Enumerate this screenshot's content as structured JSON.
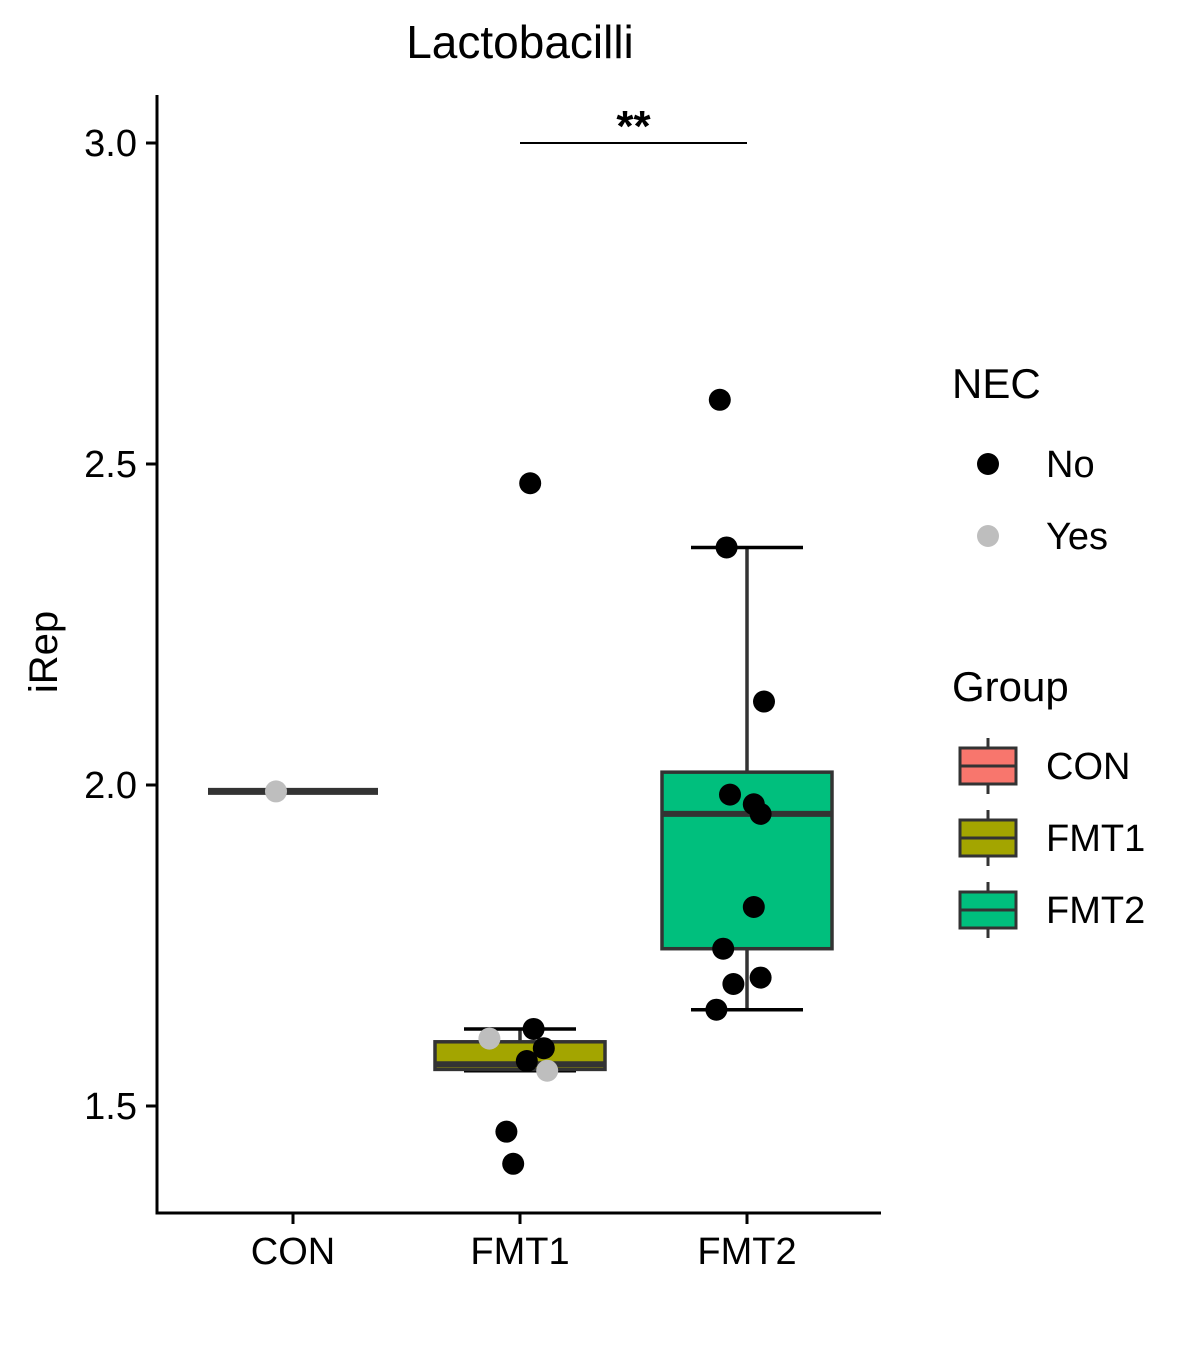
{
  "chart_data": {
    "type": "box",
    "title": "Lactobacilli",
    "xlabel": "",
    "ylabel": "iRep",
    "categories": [
      "CON",
      "FMT1",
      "FMT2"
    ],
    "ylim": [
      1.33,
      3.08
    ],
    "yticks": [
      1.5,
      2.0,
      2.5,
      3.0
    ],
    "ytick_labels": [
      "1.5",
      "2.0",
      "2.5",
      "3.0"
    ],
    "grid": false,
    "boxes": [
      {
        "group": "CON",
        "min": 1.99,
        "q1": 1.99,
        "median": 1.99,
        "q3": 1.99,
        "max": 1.99,
        "color": "#F8766D"
      },
      {
        "group": "FMT1",
        "min": 1.555,
        "q1": 1.557,
        "median": 1.565,
        "q3": 1.6,
        "max": 1.62,
        "color": "#A3A500"
      },
      {
        "group": "FMT2",
        "min": 1.65,
        "q1": 1.745,
        "median": 1.955,
        "q3": 2.02,
        "max": 2.37,
        "color": "#00BF7D"
      }
    ],
    "points": [
      {
        "group": "CON",
        "offset": -0.05,
        "y": 1.99,
        "nec": "Yes"
      },
      {
        "group": "FMT1",
        "offset": 0.03,
        "y": 2.47,
        "nec": "No"
      },
      {
        "group": "FMT1",
        "offset": 0.04,
        "y": 1.62,
        "nec": "No"
      },
      {
        "group": "FMT1",
        "offset": -0.09,
        "y": 1.605,
        "nec": "Yes"
      },
      {
        "group": "FMT1",
        "offset": 0.07,
        "y": 1.59,
        "nec": "No"
      },
      {
        "group": "FMT1",
        "offset": 0.02,
        "y": 1.57,
        "nec": "No"
      },
      {
        "group": "FMT1",
        "offset": 0.08,
        "y": 1.555,
        "nec": "Yes"
      },
      {
        "group": "FMT1",
        "offset": -0.04,
        "y": 1.46,
        "nec": "No"
      },
      {
        "group": "FMT1",
        "offset": -0.02,
        "y": 1.41,
        "nec": "No"
      },
      {
        "group": "FMT2",
        "offset": -0.08,
        "y": 2.6,
        "nec": "No"
      },
      {
        "group": "FMT2",
        "offset": -0.06,
        "y": 2.37,
        "nec": "No"
      },
      {
        "group": "FMT2",
        "offset": 0.05,
        "y": 2.13,
        "nec": "No"
      },
      {
        "group": "FMT2",
        "offset": -0.05,
        "y": 1.985,
        "nec": "No"
      },
      {
        "group": "FMT2",
        "offset": 0.02,
        "y": 1.97,
        "nec": "No"
      },
      {
        "group": "FMT2",
        "offset": 0.04,
        "y": 1.955,
        "nec": "No"
      },
      {
        "group": "FMT2",
        "offset": 0.02,
        "y": 1.81,
        "nec": "No"
      },
      {
        "group": "FMT2",
        "offset": -0.07,
        "y": 1.745,
        "nec": "No"
      },
      {
        "group": "FMT2",
        "offset": 0.04,
        "y": 1.7,
        "nec": "No"
      },
      {
        "group": "FMT2",
        "offset": -0.04,
        "y": 1.69,
        "nec": "No"
      },
      {
        "group": "FMT2",
        "offset": -0.09,
        "y": 1.65,
        "nec": "No"
      }
    ],
    "significance": {
      "from": "FMT1",
      "to": "FMT2",
      "y": 3.0,
      "label": "**"
    },
    "legends": {
      "placement": "right",
      "nec": {
        "title": "NEC",
        "entries": [
          {
            "label": "No",
            "color": "#000000"
          },
          {
            "label": "Yes",
            "color": "#BEBEBE"
          }
        ]
      },
      "group": {
        "title": "Group",
        "entries": [
          {
            "label": "CON",
            "color": "#F8766D"
          },
          {
            "label": "FMT1",
            "color": "#A3A500"
          },
          {
            "label": "FMT2",
            "color": "#00BF7D"
          }
        ]
      }
    }
  }
}
